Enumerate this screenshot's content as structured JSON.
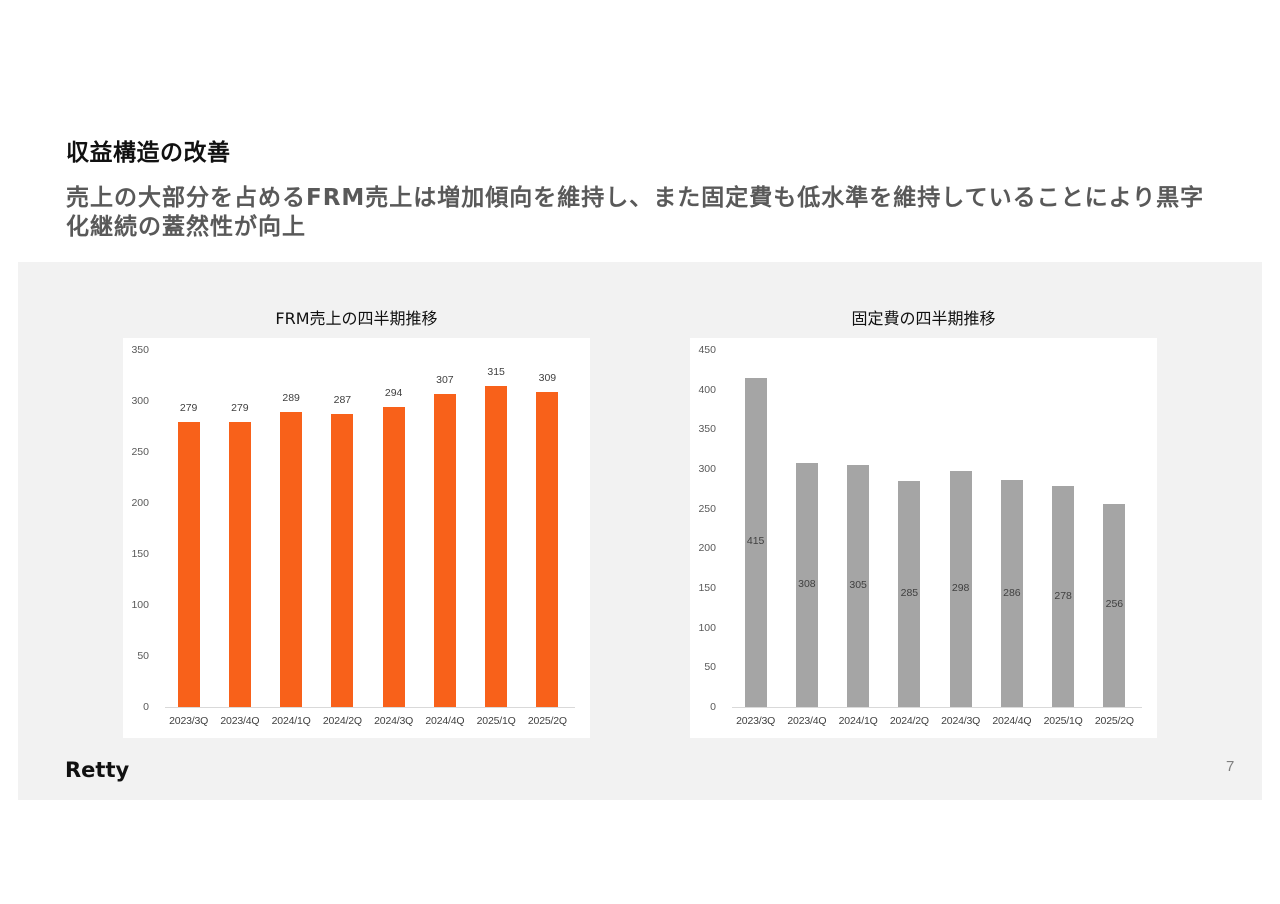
{
  "slide": {
    "title": "収益構造の改善",
    "subtitle": "売上の大部分を占めるFRM売上は増加傾向を維持し、また固定費も低水準を維持していることにより黒字化継続の蓋然性が向上",
    "logo": "Retty",
    "page_number": "7"
  },
  "colors": {
    "frm_bar": "#f8611a",
    "fixed_cost_bar": "#a5a5a5",
    "panel_bg": "#f2f2f2"
  },
  "chart_data": [
    {
      "type": "bar",
      "title": "FRM売上の四半期推移",
      "categories": [
        "2023/3Q",
        "2023/4Q",
        "2024/1Q",
        "2024/2Q",
        "2024/3Q",
        "2024/4Q",
        "2025/1Q",
        "2025/2Q"
      ],
      "values": [
        279,
        279,
        289,
        287,
        294,
        307,
        315,
        309
      ],
      "xlabel": "",
      "ylabel": "",
      "ylim": [
        0,
        350
      ],
      "yticks": [
        0,
        50,
        100,
        150,
        200,
        250,
        300,
        350
      ],
      "grid": false,
      "data_labels": "outside_end",
      "color": "#f8611a"
    },
    {
      "type": "bar",
      "title": "固定費の四半期推移",
      "categories": [
        "2023/3Q",
        "2023/4Q",
        "2024/1Q",
        "2024/2Q",
        "2024/3Q",
        "2024/4Q",
        "2025/1Q",
        "2025/2Q"
      ],
      "values": [
        415,
        308,
        305,
        285,
        298,
        286,
        278,
        256
      ],
      "xlabel": "",
      "ylabel": "",
      "ylim": [
        0,
        450
      ],
      "yticks": [
        0,
        50,
        100,
        150,
        200,
        250,
        300,
        350,
        400,
        450
      ],
      "grid": false,
      "data_labels": "center",
      "color": "#a5a5a5"
    }
  ]
}
